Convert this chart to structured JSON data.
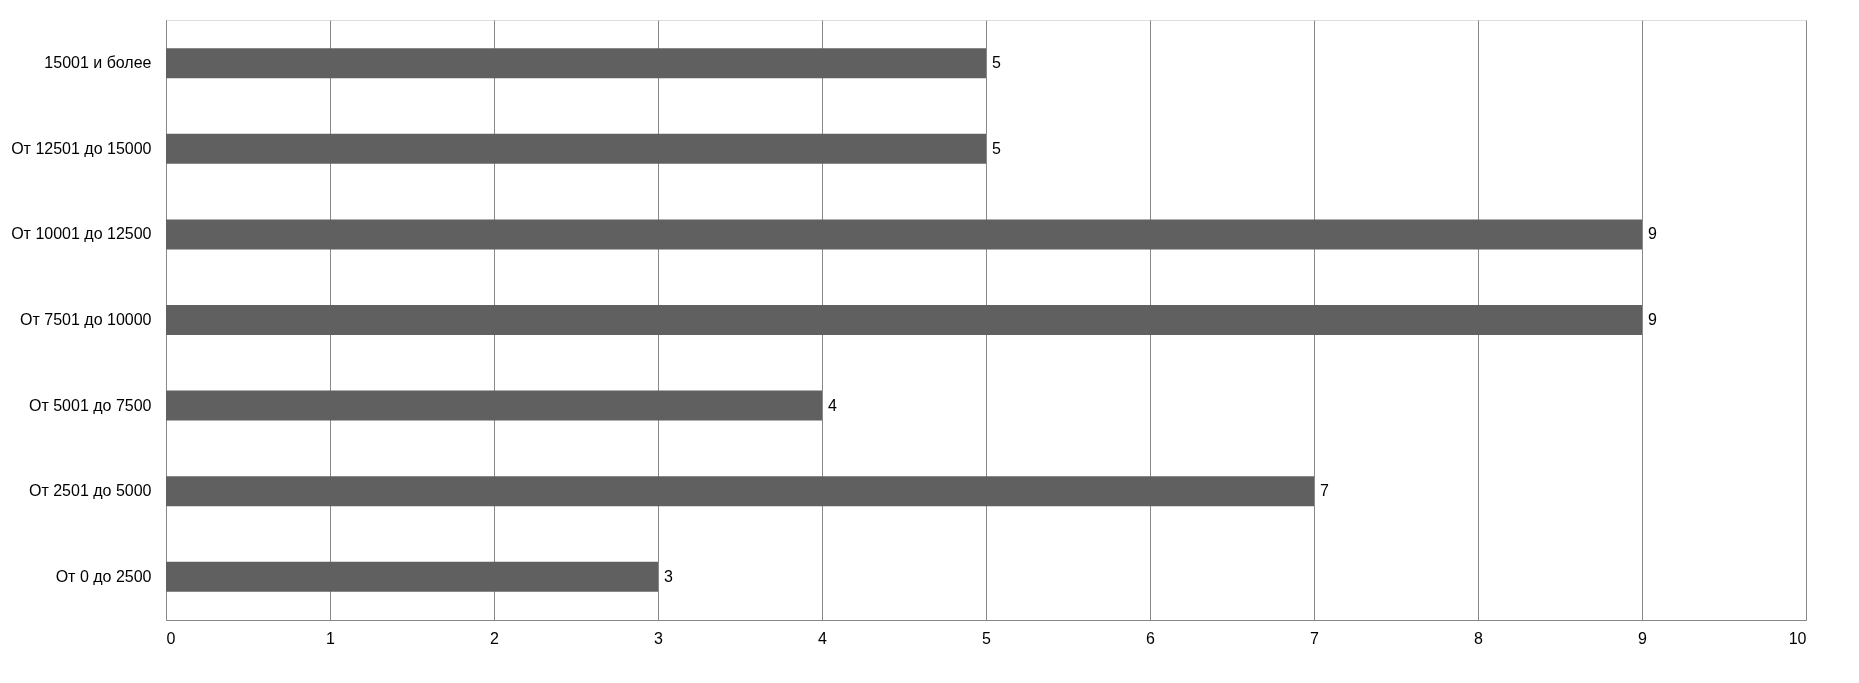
{
  "chart_data": {
    "type": "bar",
    "orientation": "horizontal",
    "categories": [
      "15001 и более",
      "От 12501 до 15000",
      "От 10001 до 12500",
      "От 7501 до 10000",
      "От 5001 до 7500",
      "От 2501 до 5000",
      "От 0 до 2500"
    ],
    "values": [
      5,
      5,
      9,
      9,
      4,
      7,
      3
    ],
    "color": "#606060",
    "xlim": [
      0,
      10
    ],
    "xticks": [
      0,
      1,
      2,
      3,
      4,
      5,
      6,
      7,
      8,
      9,
      10
    ],
    "grid": "x",
    "data_labels": true
  }
}
